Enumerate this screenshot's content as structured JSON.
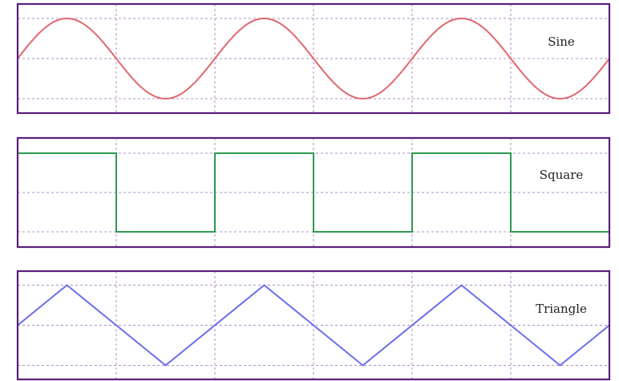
{
  "chart_data": [
    {
      "type": "line",
      "title": "",
      "label": "Sine",
      "color": "#e0686e",
      "waveform": "sine",
      "cycles": 3,
      "x": [
        0,
        0.25,
        0.5,
        0.75,
        1,
        1.25,
        1.5,
        1.75,
        2,
        2.25,
        2.5,
        2.75,
        3
      ],
      "y": [
        0,
        1,
        0,
        -1,
        0,
        1,
        0,
        -1,
        0,
        1,
        0,
        -1,
        0
      ],
      "xlim": [
        0,
        3
      ],
      "ylim": [
        -1,
        1
      ],
      "grid": true
    },
    {
      "type": "line",
      "title": "",
      "label": "Square",
      "color": "#2e9a4e",
      "waveform": "square",
      "cycles": 3,
      "x": [
        0,
        0.5,
        0.5,
        1,
        1,
        1.5,
        1.5,
        2,
        2,
        2.5,
        2.5,
        3
      ],
      "y": [
        1,
        1,
        -1,
        -1,
        1,
        1,
        -1,
        -1,
        1,
        1,
        -1,
        -1
      ],
      "xlim": [
        0,
        3
      ],
      "ylim": [
        -1,
        1
      ],
      "grid": true
    },
    {
      "type": "line",
      "title": "",
      "label": "Triangle",
      "color": "#6a6cf0",
      "waveform": "triangle",
      "cycles": 3,
      "x": [
        0,
        0.25,
        0.75,
        1,
        1.25,
        1.75,
        2,
        2.25,
        2.75,
        3
      ],
      "y": [
        0,
        1,
        -1,
        0,
        1,
        -1,
        0,
        1,
        -1,
        0
      ],
      "xlim": [
        0,
        3
      ],
      "ylim": [
        -1,
        1
      ],
      "grid": true
    }
  ]
}
